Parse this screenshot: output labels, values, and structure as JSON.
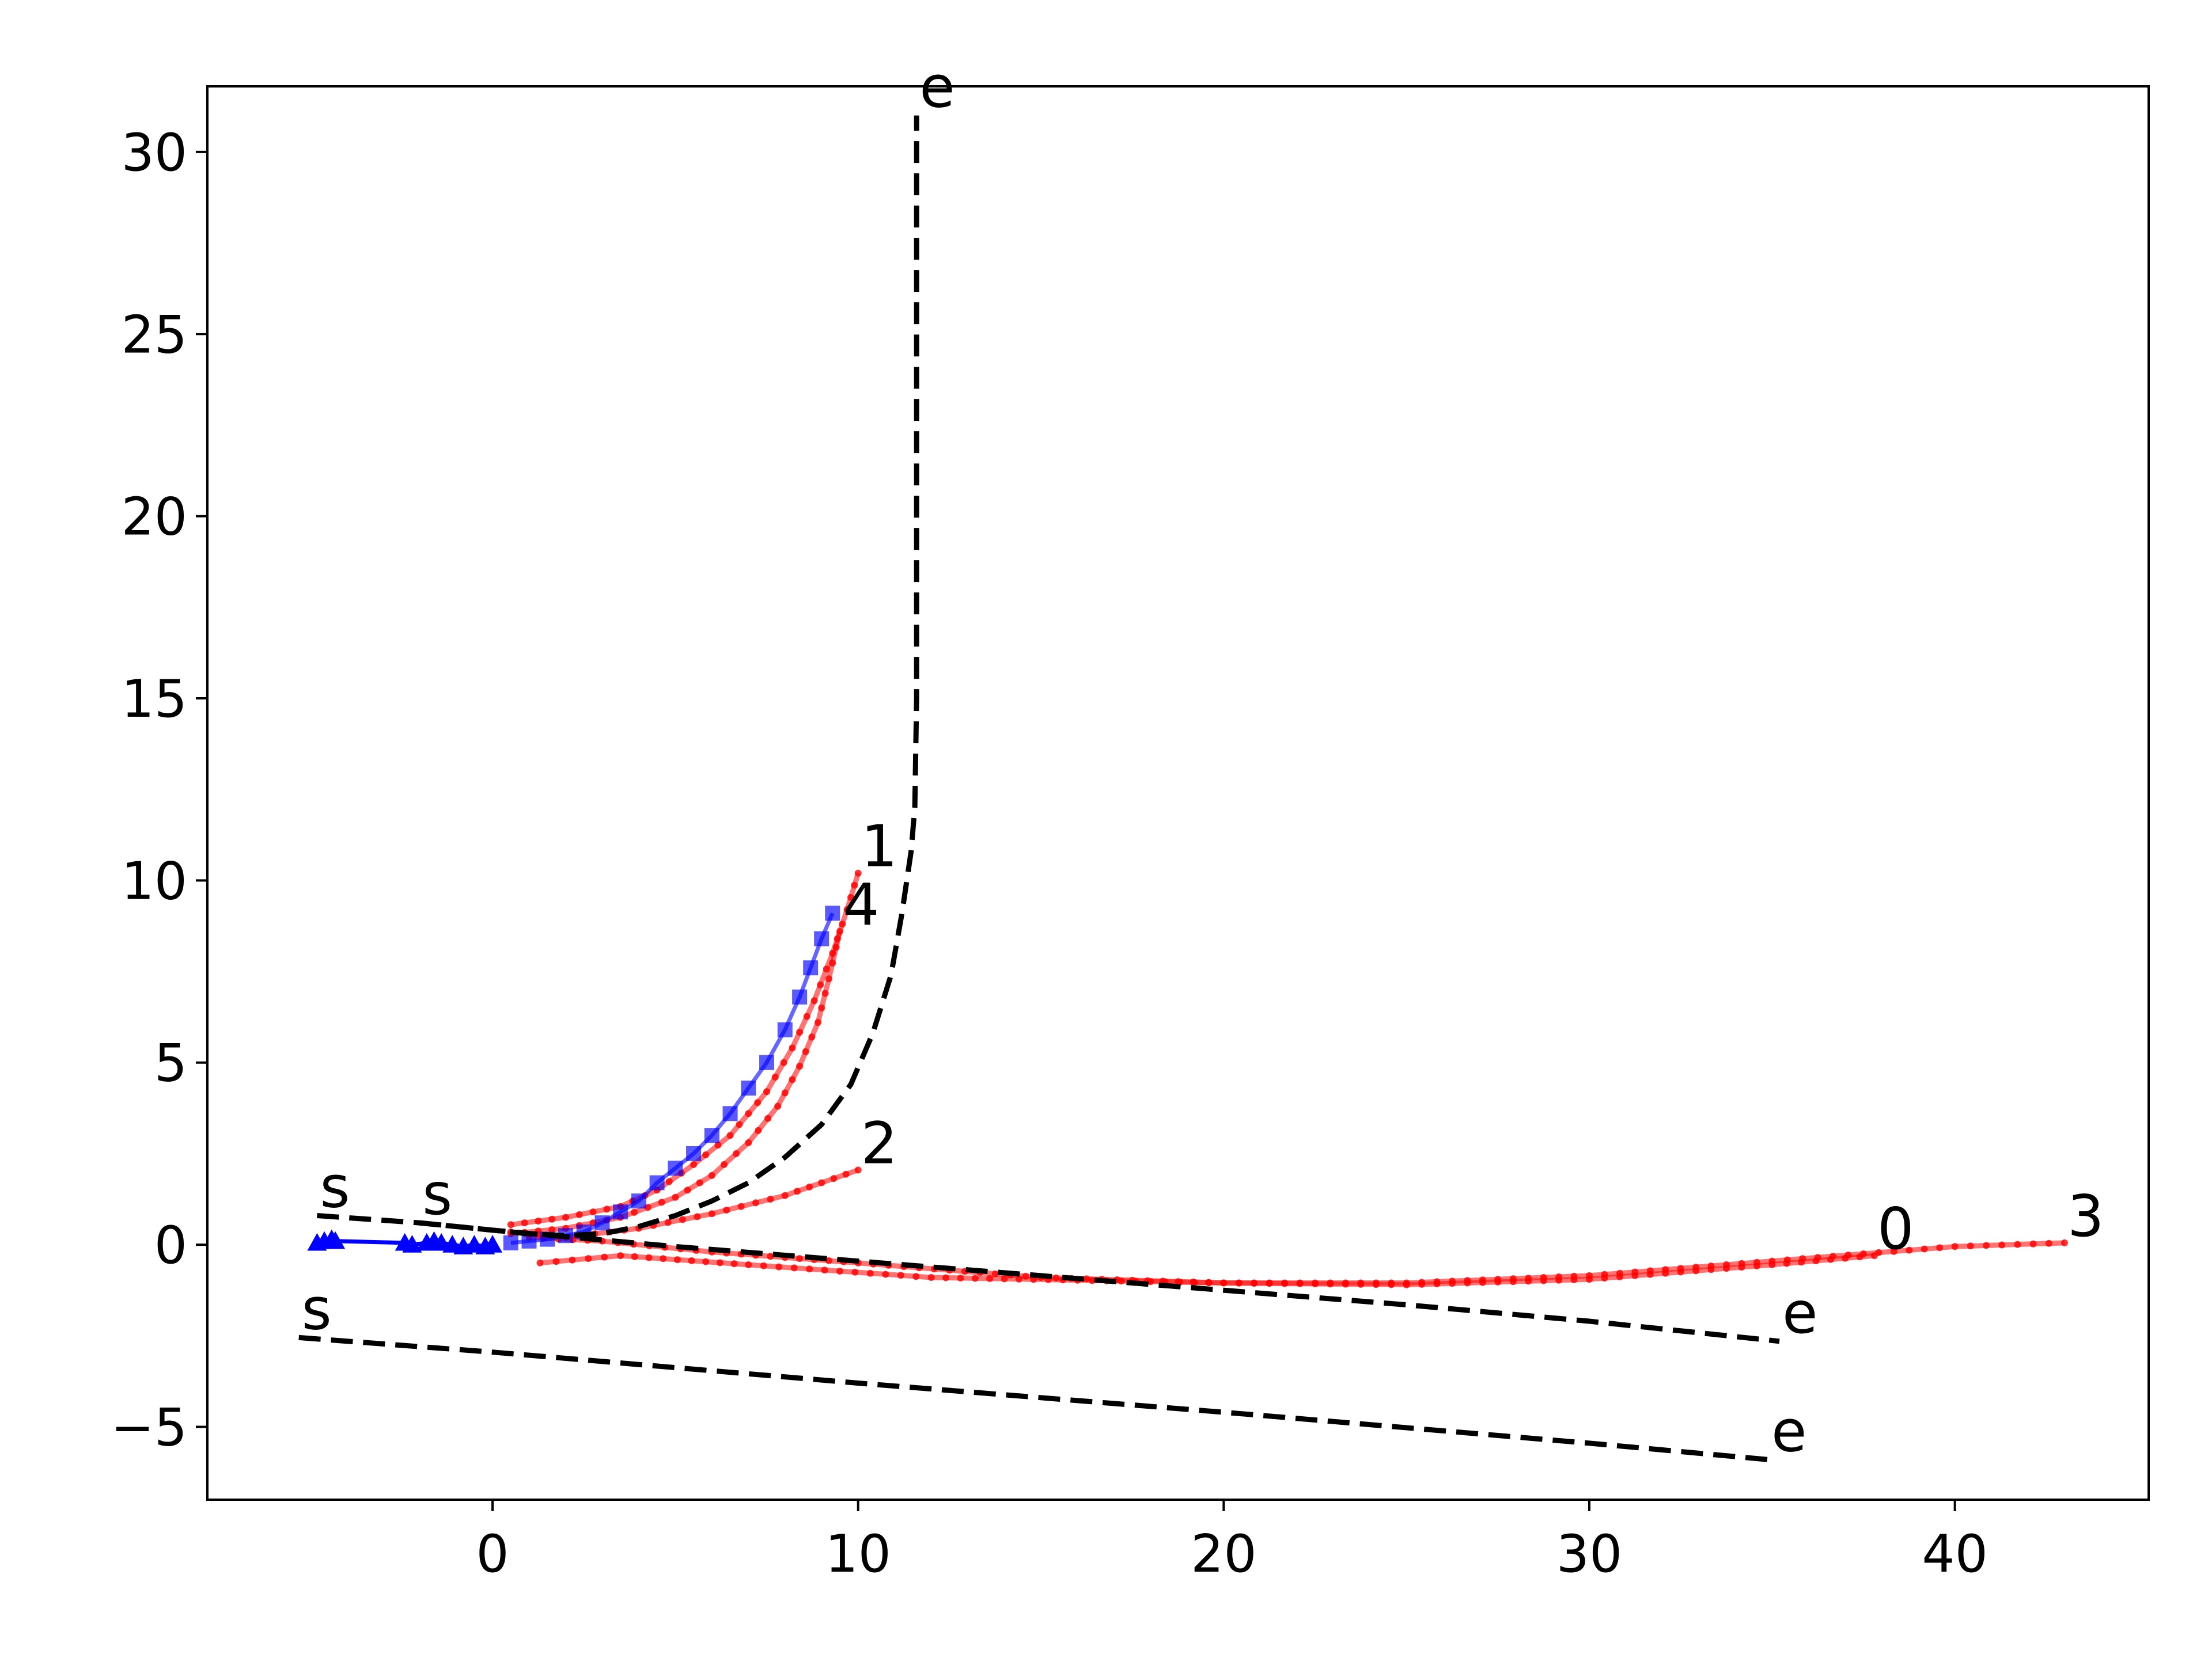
{
  "chart_data": {
    "type": "line",
    "title": "",
    "xlabel": "",
    "ylabel": "",
    "xlim": [
      -7.8,
      45.3
    ],
    "ylim": [
      -7.0,
      31.8
    ],
    "xticks": [
      0,
      10,
      20,
      30,
      40
    ],
    "yticks": [
      -5,
      0,
      5,
      10,
      15,
      20,
      25,
      30
    ],
    "xtick_labels": [
      "0",
      "10",
      "20",
      "30",
      "40"
    ],
    "ytick_labels": [
      "−5",
      "0",
      "5",
      "10",
      "15",
      "20",
      "25",
      "30"
    ],
    "grid": false,
    "legend": "none",
    "colors": {
      "reference": "#000000",
      "prediction": "#ff0000",
      "history": "#0000ff"
    },
    "reference_paths": [
      {
        "start_label": "s",
        "end_label": "e",
        "points": [
          [
            -4.8,
            0.8
          ],
          [
            -2,
            0.6
          ],
          [
            0,
            0.4
          ],
          [
            1,
            0.3
          ],
          [
            2,
            0.25
          ],
          [
            3,
            0.3
          ],
          [
            4,
            0.5
          ],
          [
            5,
            0.8
          ],
          [
            6,
            1.2
          ],
          [
            7,
            1.7
          ],
          [
            8,
            2.4
          ],
          [
            9,
            3.3
          ],
          [
            9.8,
            4.4
          ],
          [
            10.4,
            5.8
          ],
          [
            10.9,
            7.4
          ],
          [
            11.2,
            9.1
          ],
          [
            11.45,
            10.8
          ],
          [
            11.55,
            12
          ],
          [
            11.6,
            15
          ],
          [
            11.6,
            20
          ],
          [
            11.6,
            25
          ],
          [
            11.6,
            31
          ]
        ]
      },
      {
        "start_label": "s",
        "end_label": "e",
        "points": [
          [
            -2,
            0.6
          ],
          [
            0,
            0.4
          ],
          [
            5,
            -0.05
          ],
          [
            10,
            -0.45
          ],
          [
            15,
            -0.85
          ],
          [
            20,
            -1.25
          ],
          [
            25,
            -1.65
          ],
          [
            30,
            -2.1
          ],
          [
            35.2,
            -2.65
          ]
        ]
      },
      {
        "start_label": "s",
        "end_label": "e",
        "points": [
          [
            -5.3,
            -2.55
          ],
          [
            0,
            -2.95
          ],
          [
            10,
            -3.8
          ],
          [
            20,
            -4.6
          ],
          [
            30,
            -5.45
          ],
          [
            34.9,
            -5.9
          ]
        ]
      }
    ],
    "predicted_paths": [
      {
        "label": "0",
        "points": [
          [
            1,
            0.2
          ],
          [
            3,
            0.1
          ],
          [
            6,
            -0.2
          ],
          [
            10,
            -0.5
          ],
          [
            15,
            -0.9
          ],
          [
            20,
            -1.05
          ],
          [
            25,
            -1.1
          ],
          [
            30,
            -0.95
          ],
          [
            35,
            -0.55
          ],
          [
            37.8,
            -0.3
          ]
        ]
      },
      {
        "label": "1",
        "points": [
          [
            0.5,
            0.55
          ],
          [
            2,
            0.75
          ],
          [
            3.5,
            1.05
          ],
          [
            4.5,
            1.5
          ],
          [
            5.5,
            2.2
          ],
          [
            6.5,
            3.0
          ],
          [
            7.5,
            4.2
          ],
          [
            8.2,
            5.4
          ],
          [
            8.8,
            6.7
          ],
          [
            9.3,
            8.0
          ],
          [
            9.7,
            9.2
          ],
          [
            10,
            10.2
          ]
        ]
      },
      {
        "label": "2",
        "points": [
          [
            0.5,
            0.35
          ],
          [
            2,
            0.2
          ],
          [
            4,
            0.45
          ],
          [
            6,
            0.85
          ],
          [
            8,
            1.35
          ],
          [
            9,
            1.7
          ],
          [
            10,
            2.05
          ]
        ]
      },
      {
        "label": "3",
        "points": [
          [
            1.3,
            -0.5
          ],
          [
            3.5,
            -0.3
          ],
          [
            7,
            -0.55
          ],
          [
            12,
            -0.9
          ],
          [
            20,
            -1.05
          ],
          [
            25,
            -1.05
          ],
          [
            30,
            -0.85
          ],
          [
            35,
            -0.45
          ],
          [
            40,
            -0.05
          ],
          [
            43,
            0.05
          ]
        ]
      },
      {
        "label": "4",
        "points": [
          [
            0.5,
            0.3
          ],
          [
            2,
            0.45
          ],
          [
            3.5,
            0.75
          ],
          [
            5,
            1.3
          ],
          [
            6,
            1.9
          ],
          [
            7,
            2.8
          ],
          [
            7.8,
            3.8
          ],
          [
            8.4,
            4.9
          ],
          [
            8.9,
            6.1
          ],
          [
            9.2,
            7.3
          ],
          [
            9.5,
            8.6
          ]
        ]
      }
    ],
    "history_triangles": [
      [
        -4.8,
        0.05
      ],
      [
        -4.6,
        0.1
      ],
      [
        -4.4,
        0.15
      ],
      [
        -4.3,
        0.1
      ],
      [
        -2.4,
        0.05
      ],
      [
        -2.2,
        0.0
      ],
      [
        -1.8,
        0.05
      ],
      [
        -1.6,
        0.1
      ],
      [
        -1.4,
        0.05
      ],
      [
        -1.1,
        0.0
      ],
      [
        -0.8,
        -0.05
      ],
      [
        -0.5,
        0.0
      ],
      [
        -0.2,
        -0.05
      ],
      [
        0,
        0.0
      ]
    ],
    "history_squares": [
      [
        0.5,
        0.05
      ],
      [
        1,
        0.1
      ],
      [
        1.5,
        0.15
      ],
      [
        2,
        0.25
      ],
      [
        2.5,
        0.35
      ],
      [
        3,
        0.6
      ],
      [
        3.5,
        0.9
      ],
      [
        4,
        1.2
      ],
      [
        4.5,
        1.7
      ],
      [
        5,
        2.1
      ],
      [
        5.5,
        2.5
      ],
      [
        6,
        3.0
      ],
      [
        6.5,
        3.6
      ],
      [
        7,
        4.3
      ],
      [
        7.5,
        5.0
      ],
      [
        8,
        5.9
      ],
      [
        8.4,
        6.8
      ],
      [
        8.7,
        7.6
      ],
      [
        9,
        8.4
      ],
      [
        9.3,
        9.1
      ]
    ]
  }
}
